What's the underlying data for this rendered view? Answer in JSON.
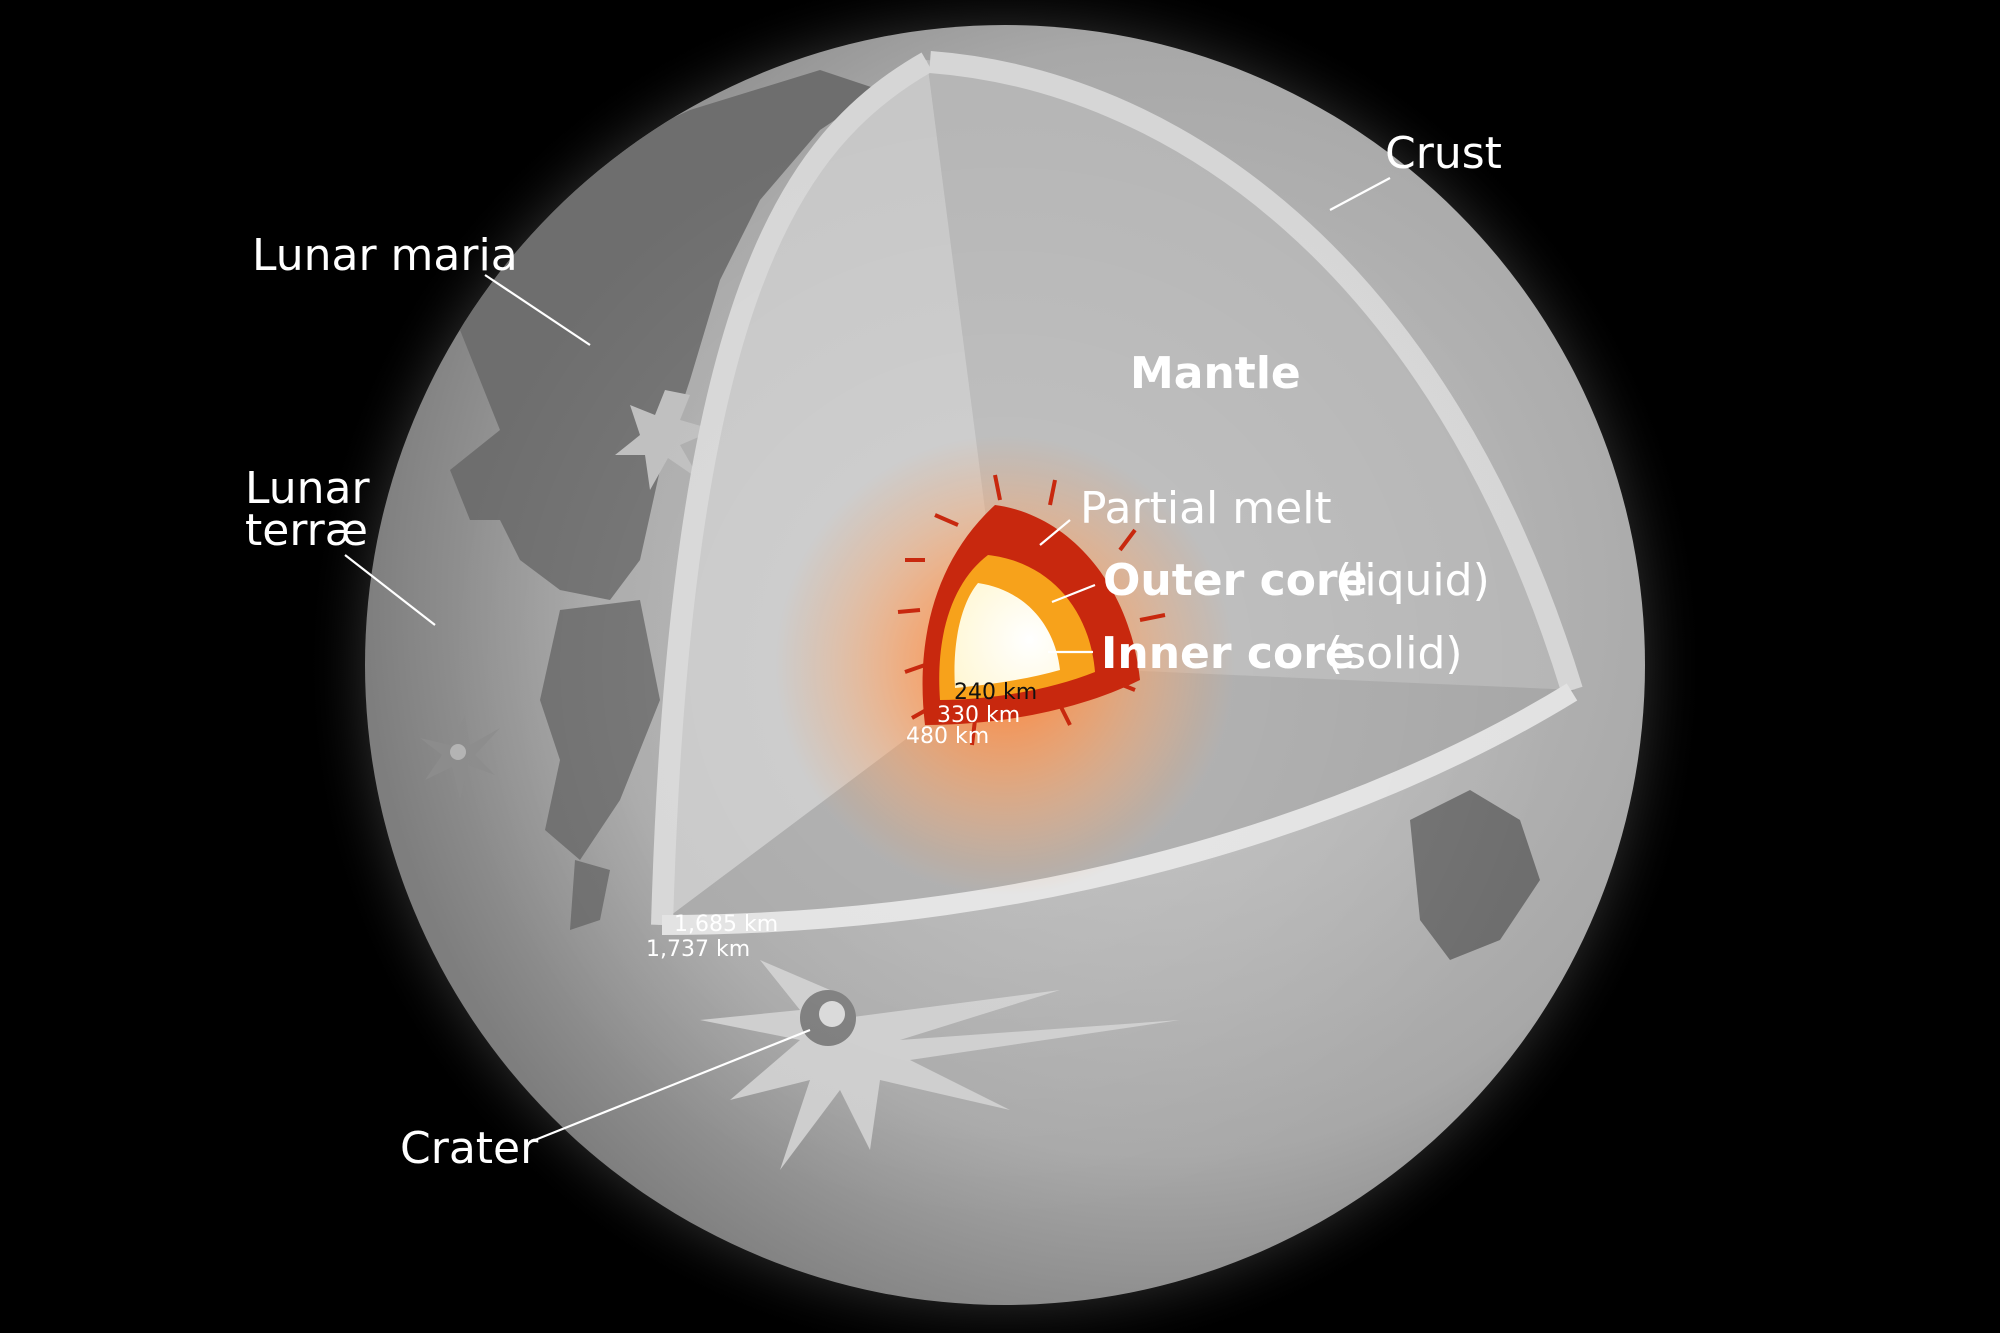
{
  "labels": {
    "crust": "Crust",
    "lunar_maria": "Lunar maria",
    "lunar_terrae_line1": "Lunar",
    "lunar_terrae_line2": "terræ",
    "mantle": "Mantle",
    "partial_melt": "Partial melt",
    "outer_core": "Outer core",
    "outer_core_state": "(liquid)",
    "inner_core": "Inner core",
    "inner_core_state": "(solid)",
    "crater": "Crater"
  },
  "radii": {
    "inner_core": "240 km",
    "outer_core": "330 km",
    "partial_melt": "480 km",
    "mantle": "1,685 km",
    "surface": "1,737 km"
  },
  "colors": {
    "background": "#000000",
    "surface": "#a9a9a9",
    "maria": "#6e6e6e",
    "mantle": "#b8b8b8",
    "crust": "#cfcfcf",
    "partial_melt": "#c8280e",
    "outer_core": "#f7a21b",
    "inner_core": "#fff8d8",
    "label_text": "#ffffff"
  }
}
